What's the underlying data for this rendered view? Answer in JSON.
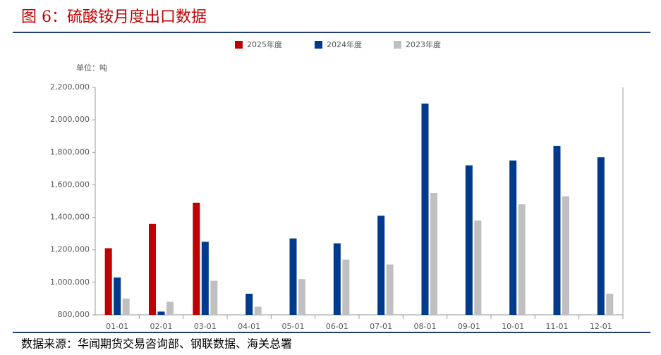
{
  "chart_data": {
    "type": "bar",
    "title": "图 6：硫酸铵月度出口数据",
    "unit_label": "单位：吨",
    "source": "数据来源：华闻期货交易咨询部、钢联数据、海关总署",
    "categories": [
      "01-01",
      "02-01",
      "03-01",
      "04-01",
      "05-01",
      "06-01",
      "07-01",
      "08-01",
      "09-01",
      "10-01",
      "11-01",
      "12-01"
    ],
    "series": [
      {
        "name": "2025年度",
        "color": "#c00000",
        "values": [
          1210000,
          1360000,
          1490000,
          null,
          null,
          null,
          null,
          null,
          null,
          null,
          null,
          null
        ]
      },
      {
        "name": "2024年度",
        "color": "#003a8c",
        "values": [
          1030000,
          820000,
          1250000,
          930000,
          1270000,
          1240000,
          1410000,
          2100000,
          1720000,
          1750000,
          1840000,
          1770000
        ]
      },
      {
        "name": "2023年度",
        "color": "#c0c0c0",
        "values": [
          900000,
          880000,
          1010000,
          850000,
          1020000,
          1140000,
          1110000,
          1550000,
          1380000,
          1480000,
          1530000,
          930000
        ]
      }
    ],
    "ylim": [
      800000,
      2200000
    ],
    "yticks": [
      {
        "value": 800000,
        "label": "800,000"
      },
      {
        "value": 1000000,
        "label": "1,000,000"
      },
      {
        "value": 1200000,
        "label": "1,200,000"
      },
      {
        "value": 1400000,
        "label": "1,400,000"
      },
      {
        "value": 1600000,
        "label": "1,600,000"
      },
      {
        "value": 1800000,
        "label": "1,800,000"
      },
      {
        "value": 2000000,
        "label": "2,000,000"
      },
      {
        "value": 2200000,
        "label": "2,200,000"
      }
    ],
    "legend": "top"
  }
}
